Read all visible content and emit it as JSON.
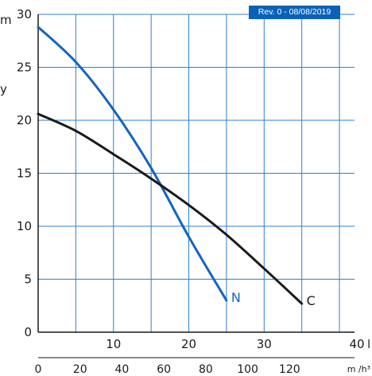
{
  "badge": "Rev. 0 - 08/08/2019",
  "colors": {
    "grid": "#2f7fcf",
    "series_N": "#1464c0",
    "series_C": "#1a1a1a",
    "badge_bg": "#0a62b8",
    "text": "#1a1a1a"
  },
  "partial_left_labels": [
    "m",
    "y"
  ],
  "chart_data": {
    "type": "line",
    "title": "",
    "grid": true,
    "y_axis": {
      "range": [
        0,
        30
      ],
      "ticks": [
        "0",
        "5",
        "10",
        "15",
        "20",
        "25",
        "30"
      ],
      "label": ""
    },
    "x_axis_secondary": {
      "range": [
        0,
        42
      ],
      "ticks": [
        "10",
        "20",
        "30",
        "40"
      ],
      "unit": "l"
    },
    "x_axis_primary": {
      "range": [
        0,
        151
      ],
      "ticks": [
        "0",
        "20",
        "40",
        "60",
        "80",
        "100",
        "120"
      ],
      "unit": "m /h³"
    },
    "series": [
      {
        "name": "N",
        "x": [
          0,
          5,
          10,
          15,
          20,
          25
        ],
        "y": [
          28.8,
          25.5,
          21.0,
          15.5,
          9.0,
          3.0
        ]
      },
      {
        "name": "C",
        "x": [
          0,
          5,
          10,
          15,
          20,
          25,
          30,
          35
        ],
        "y": [
          20.6,
          19.0,
          16.8,
          14.5,
          12.0,
          9.2,
          6.0,
          2.7
        ]
      }
    ]
  }
}
